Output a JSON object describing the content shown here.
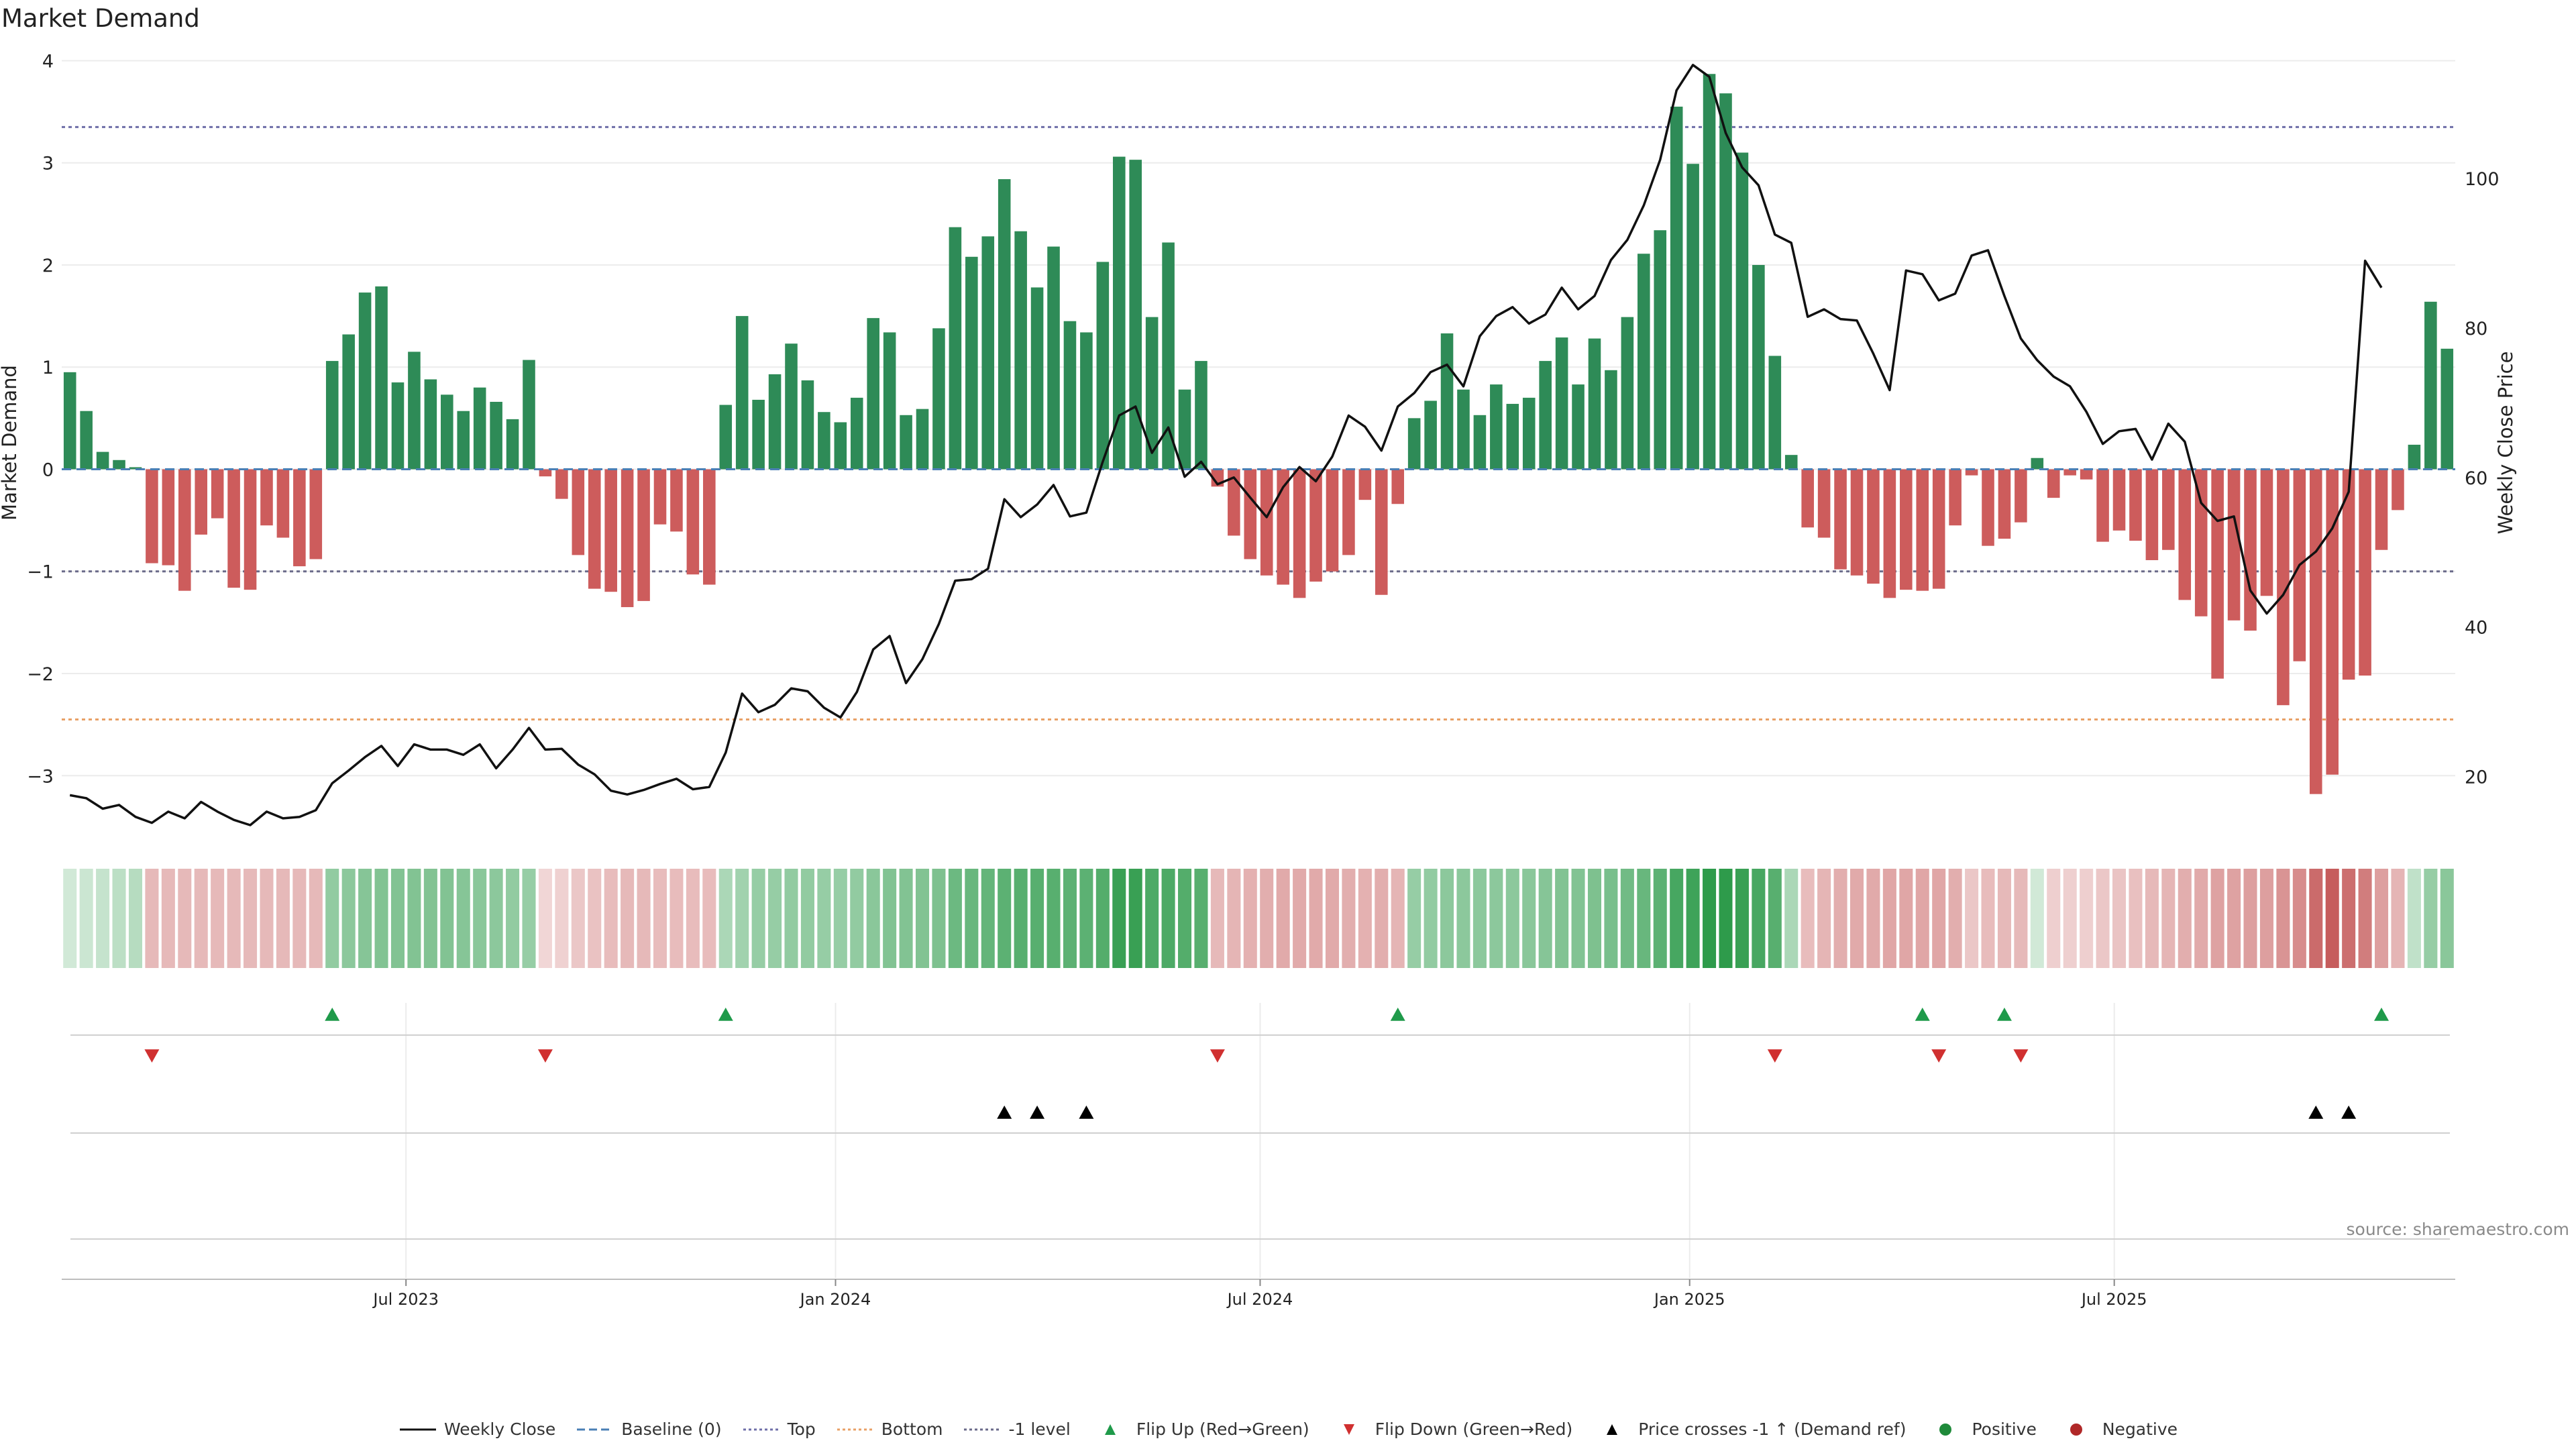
{
  "title": "Market Demand",
  "source": "source: sharemaestro.com",
  "colors": {
    "positive": "#2e8b57",
    "negative": "#cd5c5c",
    "price": "#111111",
    "top": "#6f6fa8",
    "bottom": "#e8a066",
    "minus1": "#6a6a8a",
    "baseline": "#4a7fb5",
    "flip_up": "#1f9a4a",
    "flip_down": "#d03030",
    "cross": "#000000"
  },
  "chart_data": {
    "type": "bar",
    "title": "Market Demand",
    "ylabel": "Market Demand",
    "y2label": "Weekly Close Price",
    "ylim": [
      -3.55,
      4.2
    ],
    "y2lim": [
      12.6,
      118.5
    ],
    "yticks": [
      4,
      3,
      2,
      1,
      0,
      -1,
      -2,
      -3
    ],
    "ytick_labels": [
      "4",
      "3",
      "2",
      "1",
      "0",
      "−1",
      "−2",
      "−3"
    ],
    "y2ticks": [
      100,
      80,
      60,
      40,
      20
    ],
    "y2tick_labels": [
      "100",
      "80",
      "60",
      "40",
      "20"
    ],
    "x_months": [
      {
        "label": "Jul 2023",
        "week": 20.5
      },
      {
        "label": "Jan 2024",
        "week": 46.7
      },
      {
        "label": "Jul 2024",
        "week": 72.6
      },
      {
        "label": "Jan 2025",
        "week": 98.8
      },
      {
        "label": "Jul 2025",
        "week": 124.7
      }
    ],
    "reference_lines": {
      "top": 3.35,
      "bottom": -2.45,
      "minus1_level": -1,
      "baseline": 0
    },
    "demand": [
      0.95,
      0.57,
      0.17,
      0.09,
      0.02,
      -0.92,
      -0.94,
      -1.19,
      -0.64,
      -0.48,
      -1.16,
      -1.18,
      -0.55,
      -0.67,
      -0.95,
      -0.88,
      1.06,
      1.32,
      1.73,
      1.79,
      0.85,
      1.15,
      0.88,
      0.73,
      0.57,
      0.8,
      0.66,
      0.49,
      1.07,
      -0.07,
      -0.29,
      -0.84,
      -1.17,
      -1.2,
      -1.35,
      -1.29,
      -0.54,
      -0.61,
      -1.03,
      -1.13,
      0.63,
      1.5,
      0.68,
      0.93,
      1.23,
      0.87,
      0.56,
      0.46,
      0.7,
      1.48,
      1.34,
      0.53,
      0.59,
      1.38,
      2.37,
      2.08,
      2.28,
      2.84,
      2.33,
      1.78,
      2.18,
      1.45,
      1.34,
      2.03,
      3.06,
      3.03,
      1.49,
      2.22,
      0.78,
      1.06,
      -0.17,
      -0.65,
      -0.88,
      -1.04,
      -1.13,
      -1.26,
      -1.1,
      -1.0,
      -0.84,
      -0.3,
      -1.23,
      -0.34,
      0.5,
      0.67,
      1.33,
      0.78,
      0.53,
      0.83,
      0.64,
      0.7,
      1.06,
      1.29,
      0.83,
      1.28,
      0.97,
      1.49,
      2.11,
      2.34,
      3.55,
      2.99,
      3.87,
      3.68,
      3.1,
      2.0,
      1.11,
      0.14,
      -0.57,
      -0.67,
      -0.98,
      -1.04,
      -1.12,
      -1.26,
      -1.18,
      -1.19,
      -1.17,
      -0.55,
      -0.06,
      -0.75,
      -0.68,
      -0.52,
      0.11,
      -0.28,
      -0.06,
      -0.1,
      -0.71,
      -0.6,
      -0.7,
      -0.89,
      -0.79,
      -1.28,
      -1.44,
      -2.05,
      -1.48,
      -1.58,
      -1.24,
      -2.31,
      -1.88,
      -3.18,
      -2.99,
      -2.06,
      -2.02,
      -0.79,
      -0.4,
      0.24,
      1.64,
      1.18
    ],
    "price": [
      17.5,
      17.1,
      15.7,
      16.2,
      14.6,
      13.8,
      15.3,
      14.4,
      16.6,
      15.3,
      14.2,
      13.5,
      15.3,
      14.4,
      14.6,
      15.5,
      19.1,
      20.8,
      22.6,
      24.1,
      21.4,
      24.3,
      23.6,
      23.6,
      22.9,
      24.3,
      21.1,
      23.6,
      26.5,
      23.6,
      23.7,
      21.6,
      20.3,
      18.1,
      17.6,
      18.2,
      19.0,
      19.7,
      18.3,
      18.6,
      23.2,
      31.1,
      28.6,
      29.6,
      31.8,
      31.4,
      29.2,
      27.9,
      31.3,
      37.0,
      38.8,
      32.5,
      35.7,
      40.4,
      46.2,
      46.4,
      47.8,
      57.1,
      54.7,
      56.4,
      59.0,
      54.8,
      55.3,
      62.1,
      68.3,
      69.5,
      63.3,
      66.7,
      60.1,
      62.1,
      59.1,
      60.0,
      57.3,
      54.7,
      58.7,
      61.4,
      59.5,
      62.8,
      68.3,
      66.8,
      63.6,
      69.5,
      71.3,
      74.1,
      75.1,
      72.2,
      78.9,
      81.6,
      82.8,
      80.6,
      81.8,
      85.4,
      82.5,
      84.3,
      89.1,
      91.8,
      96.4,
      102.5,
      111.8,
      115.2,
      113.6,
      106.1,
      101.5,
      99.1,
      92.5,
      91.4,
      81.5,
      82.5,
      81.2,
      81.0,
      76.6,
      71.7,
      87.7,
      87.2,
      83.7,
      84.6,
      89.7,
      90.4,
      84.3,
      78.6,
      75.7,
      73.5,
      72.2,
      68.8,
      64.5,
      66.2,
      66.5,
      62.4,
      67.2,
      64.8,
      56.6,
      54.2,
      54.8,
      44.9,
      41.8,
      44.3,
      48.3,
      50.1,
      53.2,
      58.1,
      89.0,
      85.4
    ],
    "pressure": [
      0.22,
      0.25,
      0.28,
      0.32,
      0.35,
      0.38,
      0.38,
      0.38,
      0.38,
      0.38,
      0.38,
      0.38,
      0.38,
      0.38,
      0.38,
      0.38,
      0.52,
      0.55,
      0.58,
      0.6,
      0.6,
      0.6,
      0.6,
      0.6,
      0.58,
      0.56,
      0.55,
      0.52,
      0.5,
      0.22,
      0.25,
      0.3,
      0.33,
      0.36,
      0.38,
      0.38,
      0.36,
      0.36,
      0.36,
      0.36,
      0.4,
      0.45,
      0.5,
      0.5,
      0.52,
      0.52,
      0.5,
      0.5,
      0.52,
      0.56,
      0.6,
      0.6,
      0.6,
      0.62,
      0.7,
      0.72,
      0.74,
      0.78,
      0.8,
      0.8,
      0.8,
      0.78,
      0.78,
      0.82,
      0.95,
      0.95,
      0.85,
      0.85,
      0.82,
      0.8,
      0.38,
      0.4,
      0.42,
      0.44,
      0.46,
      0.46,
      0.46,
      0.46,
      0.44,
      0.42,
      0.44,
      0.4,
      0.5,
      0.52,
      0.55,
      0.55,
      0.55,
      0.55,
      0.55,
      0.56,
      0.58,
      0.6,
      0.6,
      0.62,
      0.64,
      0.68,
      0.72,
      0.78,
      0.88,
      0.92,
      1.0,
      1.0,
      0.95,
      0.88,
      0.8,
      0.4,
      0.36,
      0.4,
      0.44,
      0.46,
      0.46,
      0.48,
      0.48,
      0.48,
      0.48,
      0.44,
      0.3,
      0.36,
      0.38,
      0.38,
      0.22,
      0.26,
      0.26,
      0.26,
      0.3,
      0.32,
      0.34,
      0.38,
      0.4,
      0.44,
      0.46,
      0.5,
      0.5,
      0.52,
      0.52,
      0.58,
      0.62,
      0.8,
      0.88,
      0.78,
      0.7,
      0.52,
      0.4,
      0.3,
      0.5,
      0.56
    ],
    "flip_up_weeks": [
      16,
      40,
      81,
      113,
      118,
      141
    ],
    "flip_down_weeks": [
      5,
      29,
      70,
      104,
      114,
      119
    ],
    "price_cross_weeks": [
      57,
      59,
      62,
      137,
      139
    ],
    "legend": [
      "Weekly Close",
      "Baseline (0)",
      "Top",
      "Bottom",
      "-1 level",
      "Flip Up (Red→Green)",
      "Flip Down (Green→Red)",
      "Price crosses -1 ↑ (Demand ref)",
      "Positive",
      "Negative"
    ]
  }
}
